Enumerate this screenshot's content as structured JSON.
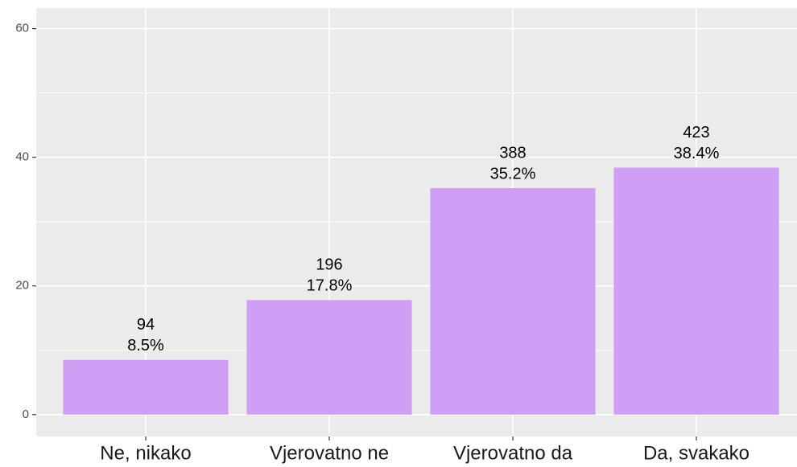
{
  "chart_data": {
    "type": "bar",
    "categories": [
      "Ne, nikako",
      "Vjerovatno ne",
      "Vjerovatno da",
      "Da, svakako"
    ],
    "values": [
      8.5,
      17.8,
      35.2,
      38.4
    ],
    "value_labels": [
      "8.5%",
      "17.8%",
      "35.2%",
      "38.4%"
    ],
    "counts": [
      94,
      196,
      388,
      423
    ],
    "color": "#cf9ff6",
    "ylim": [
      -3.4,
      63.2
    ],
    "yticks": [
      0,
      20,
      40,
      60
    ],
    "y_minor_ticks": [
      10,
      30,
      50
    ],
    "grid": true
  }
}
